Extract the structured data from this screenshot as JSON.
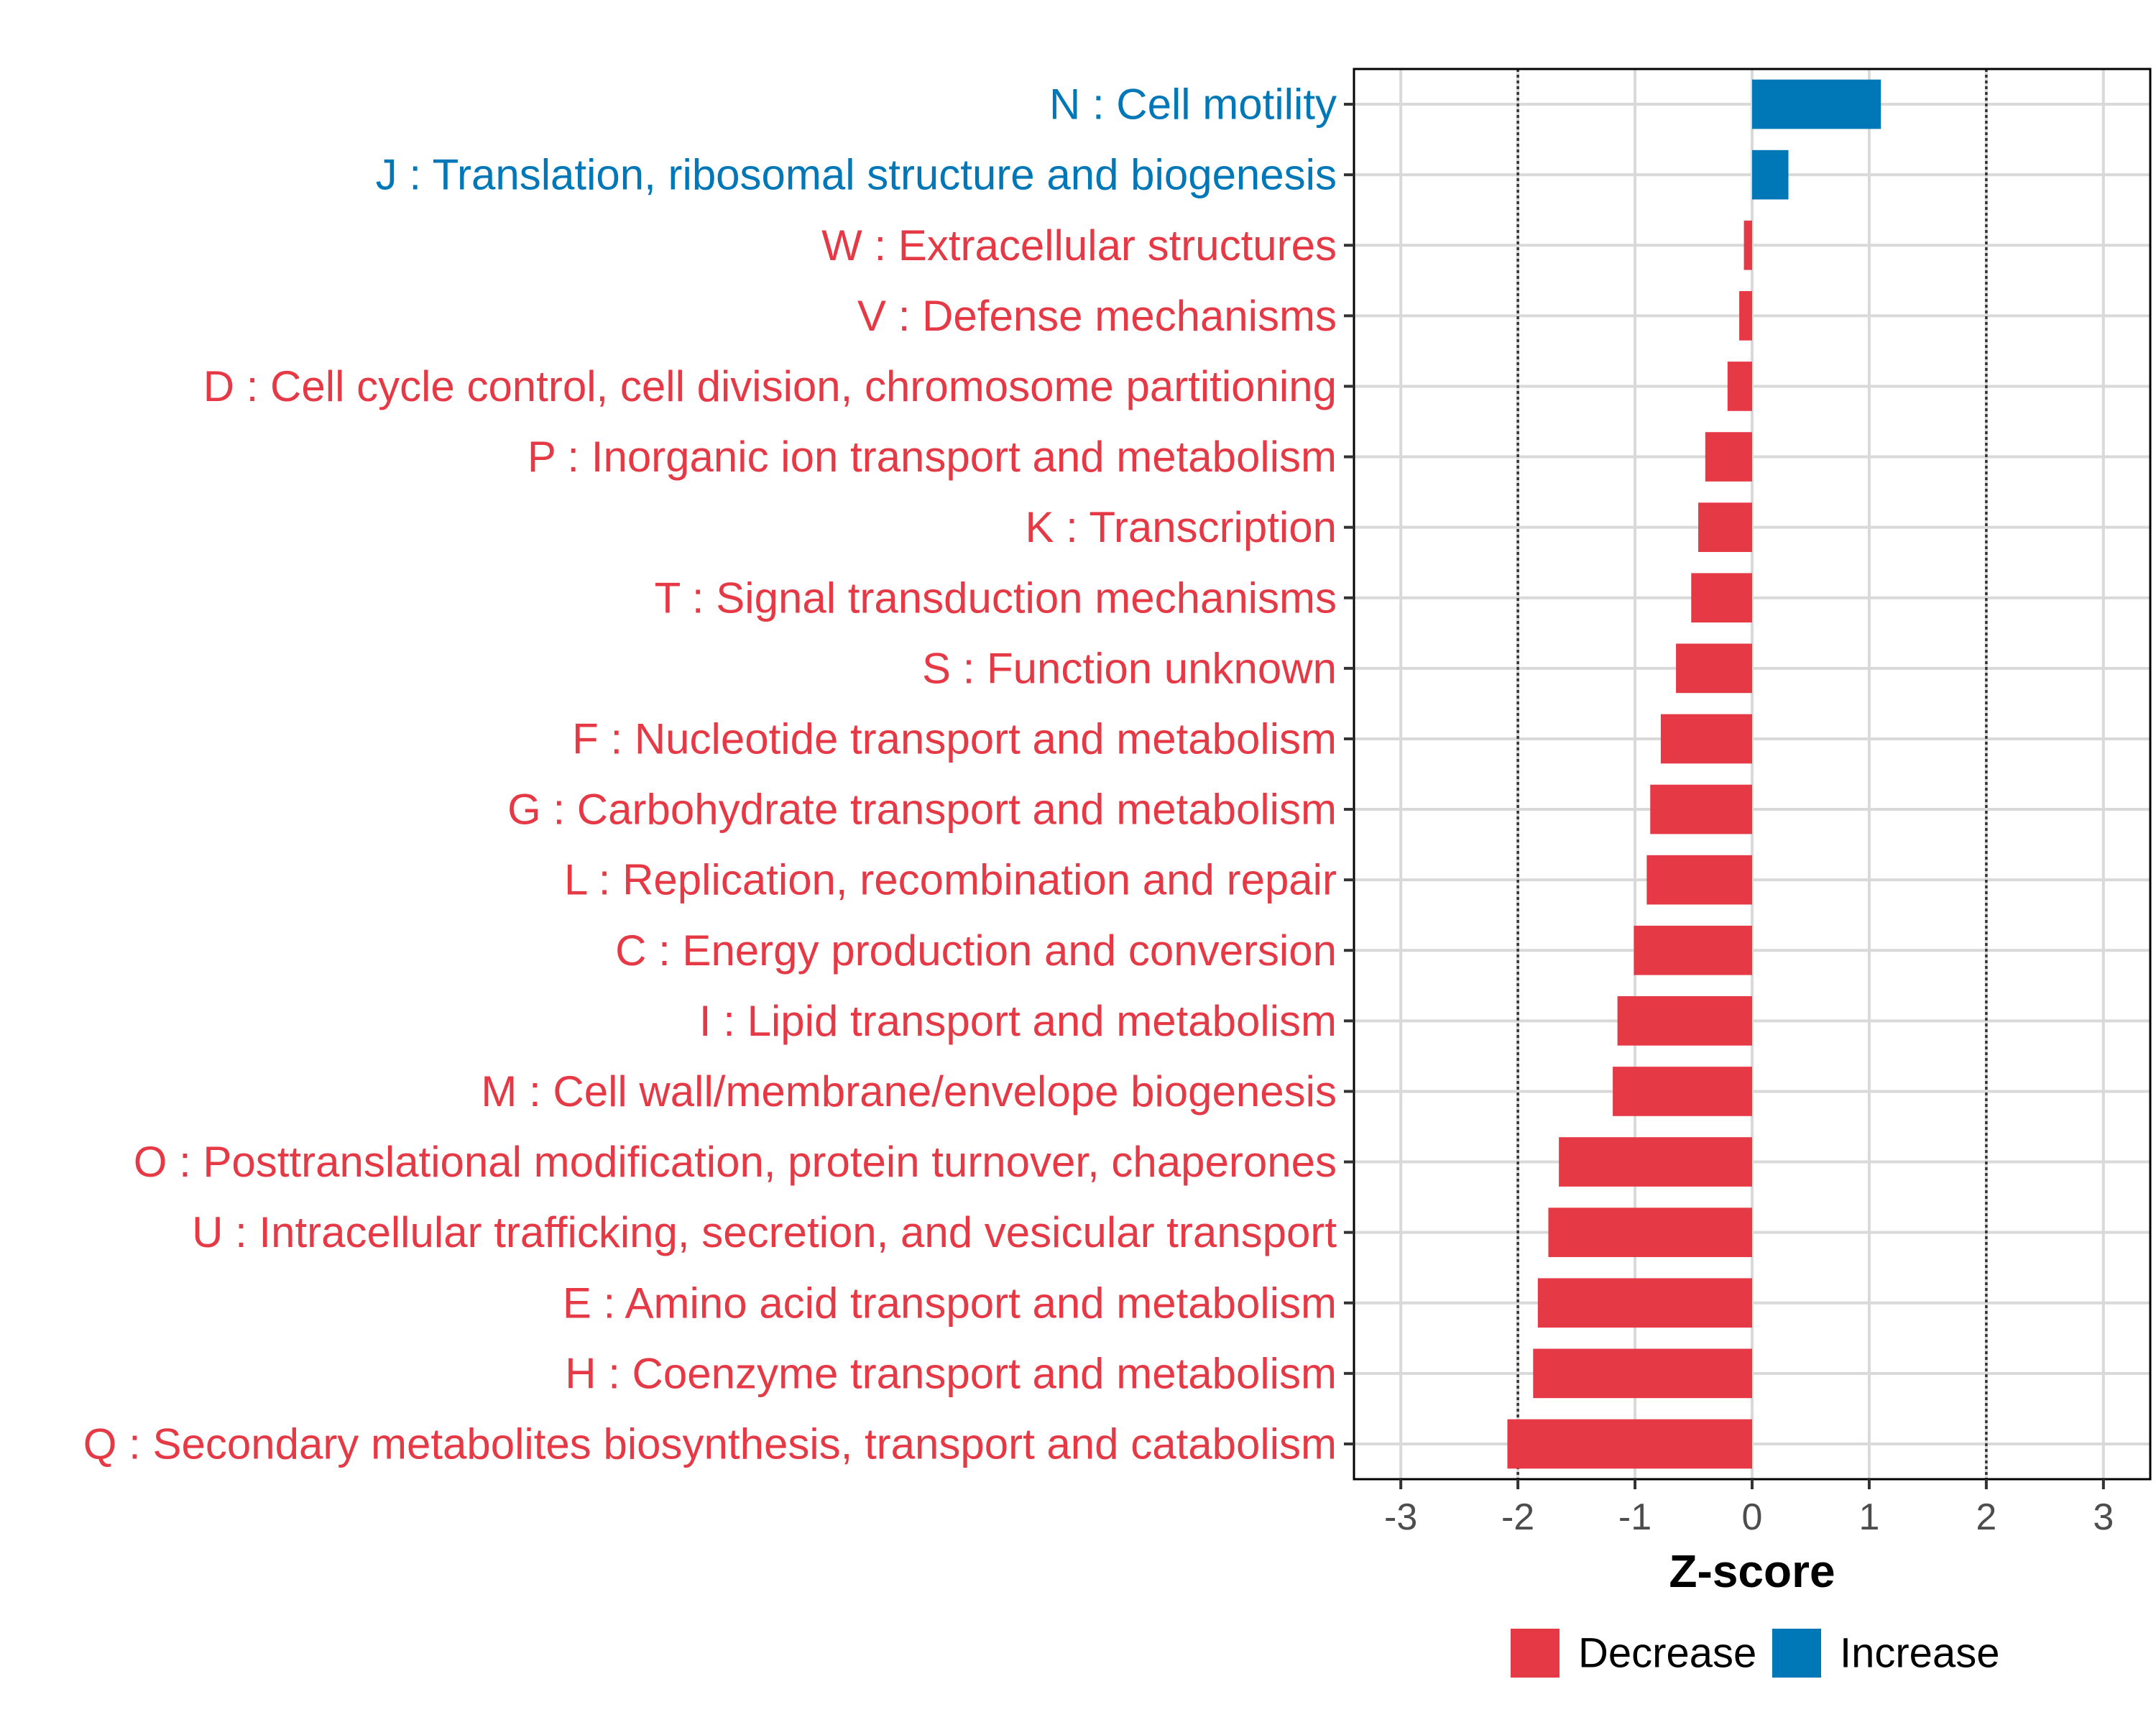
{
  "colors": {
    "decrease": "#E63946",
    "increase": "#0077B6",
    "grid": "#d9d9d9",
    "threshold": "#333333",
    "panel_border": "#000000"
  },
  "chart_data": {
    "type": "bar",
    "orientation": "horizontal",
    "title": "",
    "xlabel": "Z-score",
    "ylabel": "",
    "xlim": [
      -3.4,
      3.4
    ],
    "xticks": [
      -3,
      -2,
      -1,
      0,
      1,
      2,
      3
    ],
    "xtick_labels": [
      "-3",
      "-2",
      "-1",
      "0",
      "1",
      "2",
      "3"
    ],
    "reference_lines": [
      -2,
      2
    ],
    "grid": true,
    "legend": {
      "position": "bottom-right",
      "entries": [
        {
          "label": "Decrease",
          "color_key": "decrease"
        },
        {
          "label": "Increase",
          "color_key": "increase"
        }
      ]
    },
    "categories": [
      {
        "label": "N : Cell motility",
        "value": 1.1,
        "direction": "increase"
      },
      {
        "label": "J : Translation, ribosomal structure and biogenesis",
        "value": 0.31,
        "direction": "increase"
      },
      {
        "label": "W : Extracellular structures",
        "value": -0.07,
        "direction": "decrease"
      },
      {
        "label": "V : Defense mechanisms",
        "value": -0.11,
        "direction": "decrease"
      },
      {
        "label": "D : Cell cycle control, cell division, chromosome partitioning",
        "value": -0.21,
        "direction": "decrease"
      },
      {
        "label": "P : Inorganic ion transport and metabolism",
        "value": -0.4,
        "direction": "decrease"
      },
      {
        "label": "K : Transcription",
        "value": -0.46,
        "direction": "decrease"
      },
      {
        "label": "T : Signal transduction mechanisms",
        "value": -0.52,
        "direction": "decrease"
      },
      {
        "label": "S : Function unknown",
        "value": -0.65,
        "direction": "decrease"
      },
      {
        "label": "F : Nucleotide transport and metabolism",
        "value": -0.78,
        "direction": "decrease"
      },
      {
        "label": "G : Carbohydrate transport and metabolism",
        "value": -0.87,
        "direction": "decrease"
      },
      {
        "label": "L : Replication, recombination and repair",
        "value": -0.9,
        "direction": "decrease"
      },
      {
        "label": "C : Energy production and conversion",
        "value": -1.01,
        "direction": "decrease"
      },
      {
        "label": "I : Lipid transport and metabolism",
        "value": -1.15,
        "direction": "decrease"
      },
      {
        "label": "M : Cell wall/membrane/envelope biogenesis",
        "value": -1.19,
        "direction": "decrease"
      },
      {
        "label": "O : Posttranslational modification, protein turnover, chaperones",
        "value": -1.65,
        "direction": "decrease"
      },
      {
        "label": "U : Intracellular trafficking, secretion, and vesicular transport",
        "value": -1.74,
        "direction": "decrease"
      },
      {
        "label": "E : Amino acid transport and metabolism",
        "value": -1.83,
        "direction": "decrease"
      },
      {
        "label": "H : Coenzyme transport and metabolism",
        "value": -1.87,
        "direction": "decrease"
      },
      {
        "label": "Q : Secondary metabolites biosynthesis, transport and catabolism",
        "value": -2.09,
        "direction": "decrease"
      }
    ]
  }
}
